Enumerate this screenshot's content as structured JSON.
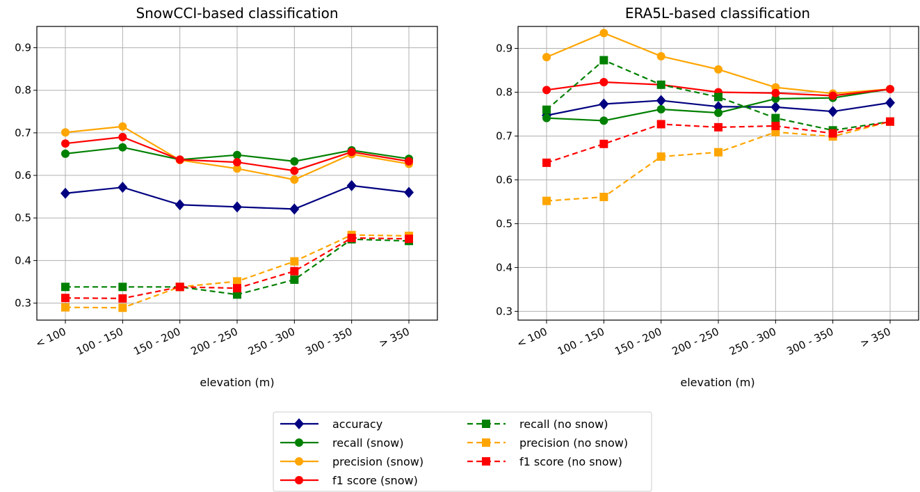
{
  "legend": [
    {
      "key": "accuracy",
      "label": "accuracy"
    },
    {
      "key": "recall_snow",
      "label": "recall (snow)"
    },
    {
      "key": "precision_snow",
      "label": "precision (snow)"
    },
    {
      "key": "f1_snow",
      "label": "f1 score (snow)"
    },
    {
      "key": "recall_nosnow",
      "label": "recall (no snow)"
    },
    {
      "key": "precision_nosnow",
      "label": "precision (no snow)"
    },
    {
      "key": "f1_nosnow",
      "label": "f1 score (no snow)"
    }
  ],
  "styles": {
    "accuracy": {
      "color": "#000080",
      "dash": false,
      "marker": "diamond"
    },
    "recall_snow": {
      "color": "#008000",
      "dash": false,
      "marker": "circle"
    },
    "precision_snow": {
      "color": "#FFA500",
      "dash": false,
      "marker": "circle"
    },
    "f1_snow": {
      "color": "#FF0000",
      "dash": false,
      "marker": "circle"
    },
    "recall_nosnow": {
      "color": "#008000",
      "dash": true,
      "marker": "square"
    },
    "precision_nosnow": {
      "color": "#FFA500",
      "dash": true,
      "marker": "square"
    },
    "f1_nosnow": {
      "color": "#FF0000",
      "dash": true,
      "marker": "square"
    }
  },
  "chart_data": [
    {
      "type": "line",
      "title": "SnowCCI-based classification",
      "xlabel": "elevation (m)",
      "ylabel": "",
      "categories": [
        "< 100",
        "100 - 150",
        "150 - 200",
        "200 - 250",
        "250 - 300",
        "300 - 350",
        "> 350"
      ],
      "ylim": [
        0.26,
        0.95
      ],
      "yticks": [
        "0.3",
        "0.4",
        "0.5",
        "0.6",
        "0.7",
        "0.8",
        "0.9"
      ],
      "grid": true,
      "series": [
        {
          "key": "accuracy",
          "name": "accuracy",
          "values": [
            0.558,
            0.572,
            0.531,
            0.526,
            0.521,
            0.576,
            0.56
          ]
        },
        {
          "key": "recall_snow",
          "name": "recall (snow)",
          "values": [
            0.651,
            0.666,
            0.637,
            0.648,
            0.633,
            0.659,
            0.639
          ]
        },
        {
          "key": "precision_snow",
          "name": "precision (snow)",
          "values": [
            0.701,
            0.715,
            0.636,
            0.616,
            0.59,
            0.65,
            0.627
          ]
        },
        {
          "key": "f1_snow",
          "name": "f1 score (snow)",
          "values": [
            0.675,
            0.69,
            0.637,
            0.631,
            0.611,
            0.655,
            0.633
          ]
        },
        {
          "key": "recall_nosnow",
          "name": "recall (no snow)",
          "values": [
            0.338,
            0.338,
            0.338,
            0.32,
            0.355,
            0.45,
            0.446
          ]
        },
        {
          "key": "precision_nosnow",
          "name": "precision (no snow)",
          "values": [
            0.29,
            0.289,
            0.338,
            0.351,
            0.398,
            0.46,
            0.458
          ]
        },
        {
          "key": "f1_nosnow",
          "name": "f1 score (no snow)",
          "values": [
            0.312,
            0.311,
            0.338,
            0.335,
            0.375,
            0.453,
            0.451
          ]
        }
      ]
    },
    {
      "type": "line",
      "title": "ERA5L-based classification",
      "xlabel": "elevation (m)",
      "ylabel": "",
      "categories": [
        "< 100",
        "100 - 150",
        "150 - 200",
        "200 - 250",
        "250 - 300",
        "300 - 350",
        "> 350"
      ],
      "ylim": [
        0.28,
        0.95
      ],
      "yticks": [
        "0.3",
        "0.4",
        "0.5",
        "0.6",
        "0.7",
        "0.8",
        "0.9"
      ],
      "grid": true,
      "series": [
        {
          "key": "accuracy",
          "name": "accuracy",
          "values": [
            0.747,
            0.773,
            0.781,
            0.767,
            0.766,
            0.756,
            0.776
          ]
        },
        {
          "key": "recall_snow",
          "name": "recall (snow)",
          "values": [
            0.741,
            0.735,
            0.761,
            0.753,
            0.785,
            0.787,
            0.807
          ]
        },
        {
          "key": "precision_snow",
          "name": "precision (snow)",
          "values": [
            0.88,
            0.935,
            0.882,
            0.852,
            0.811,
            0.797,
            0.807
          ]
        },
        {
          "key": "f1_snow",
          "name": "f1 score (snow)",
          "values": [
            0.805,
            0.823,
            0.817,
            0.8,
            0.798,
            0.792,
            0.807
          ]
        },
        {
          "key": "recall_nosnow",
          "name": "recall (no snow)",
          "values": [
            0.76,
            0.873,
            0.817,
            0.789,
            0.741,
            0.713,
            0.733
          ]
        },
        {
          "key": "precision_nosnow",
          "name": "precision (no snow)",
          "values": [
            0.552,
            0.561,
            0.653,
            0.663,
            0.709,
            0.699,
            0.733
          ]
        },
        {
          "key": "f1_nosnow",
          "name": "f1 score (no snow)",
          "values": [
            0.639,
            0.682,
            0.727,
            0.72,
            0.723,
            0.706,
            0.733
          ]
        }
      ]
    }
  ]
}
